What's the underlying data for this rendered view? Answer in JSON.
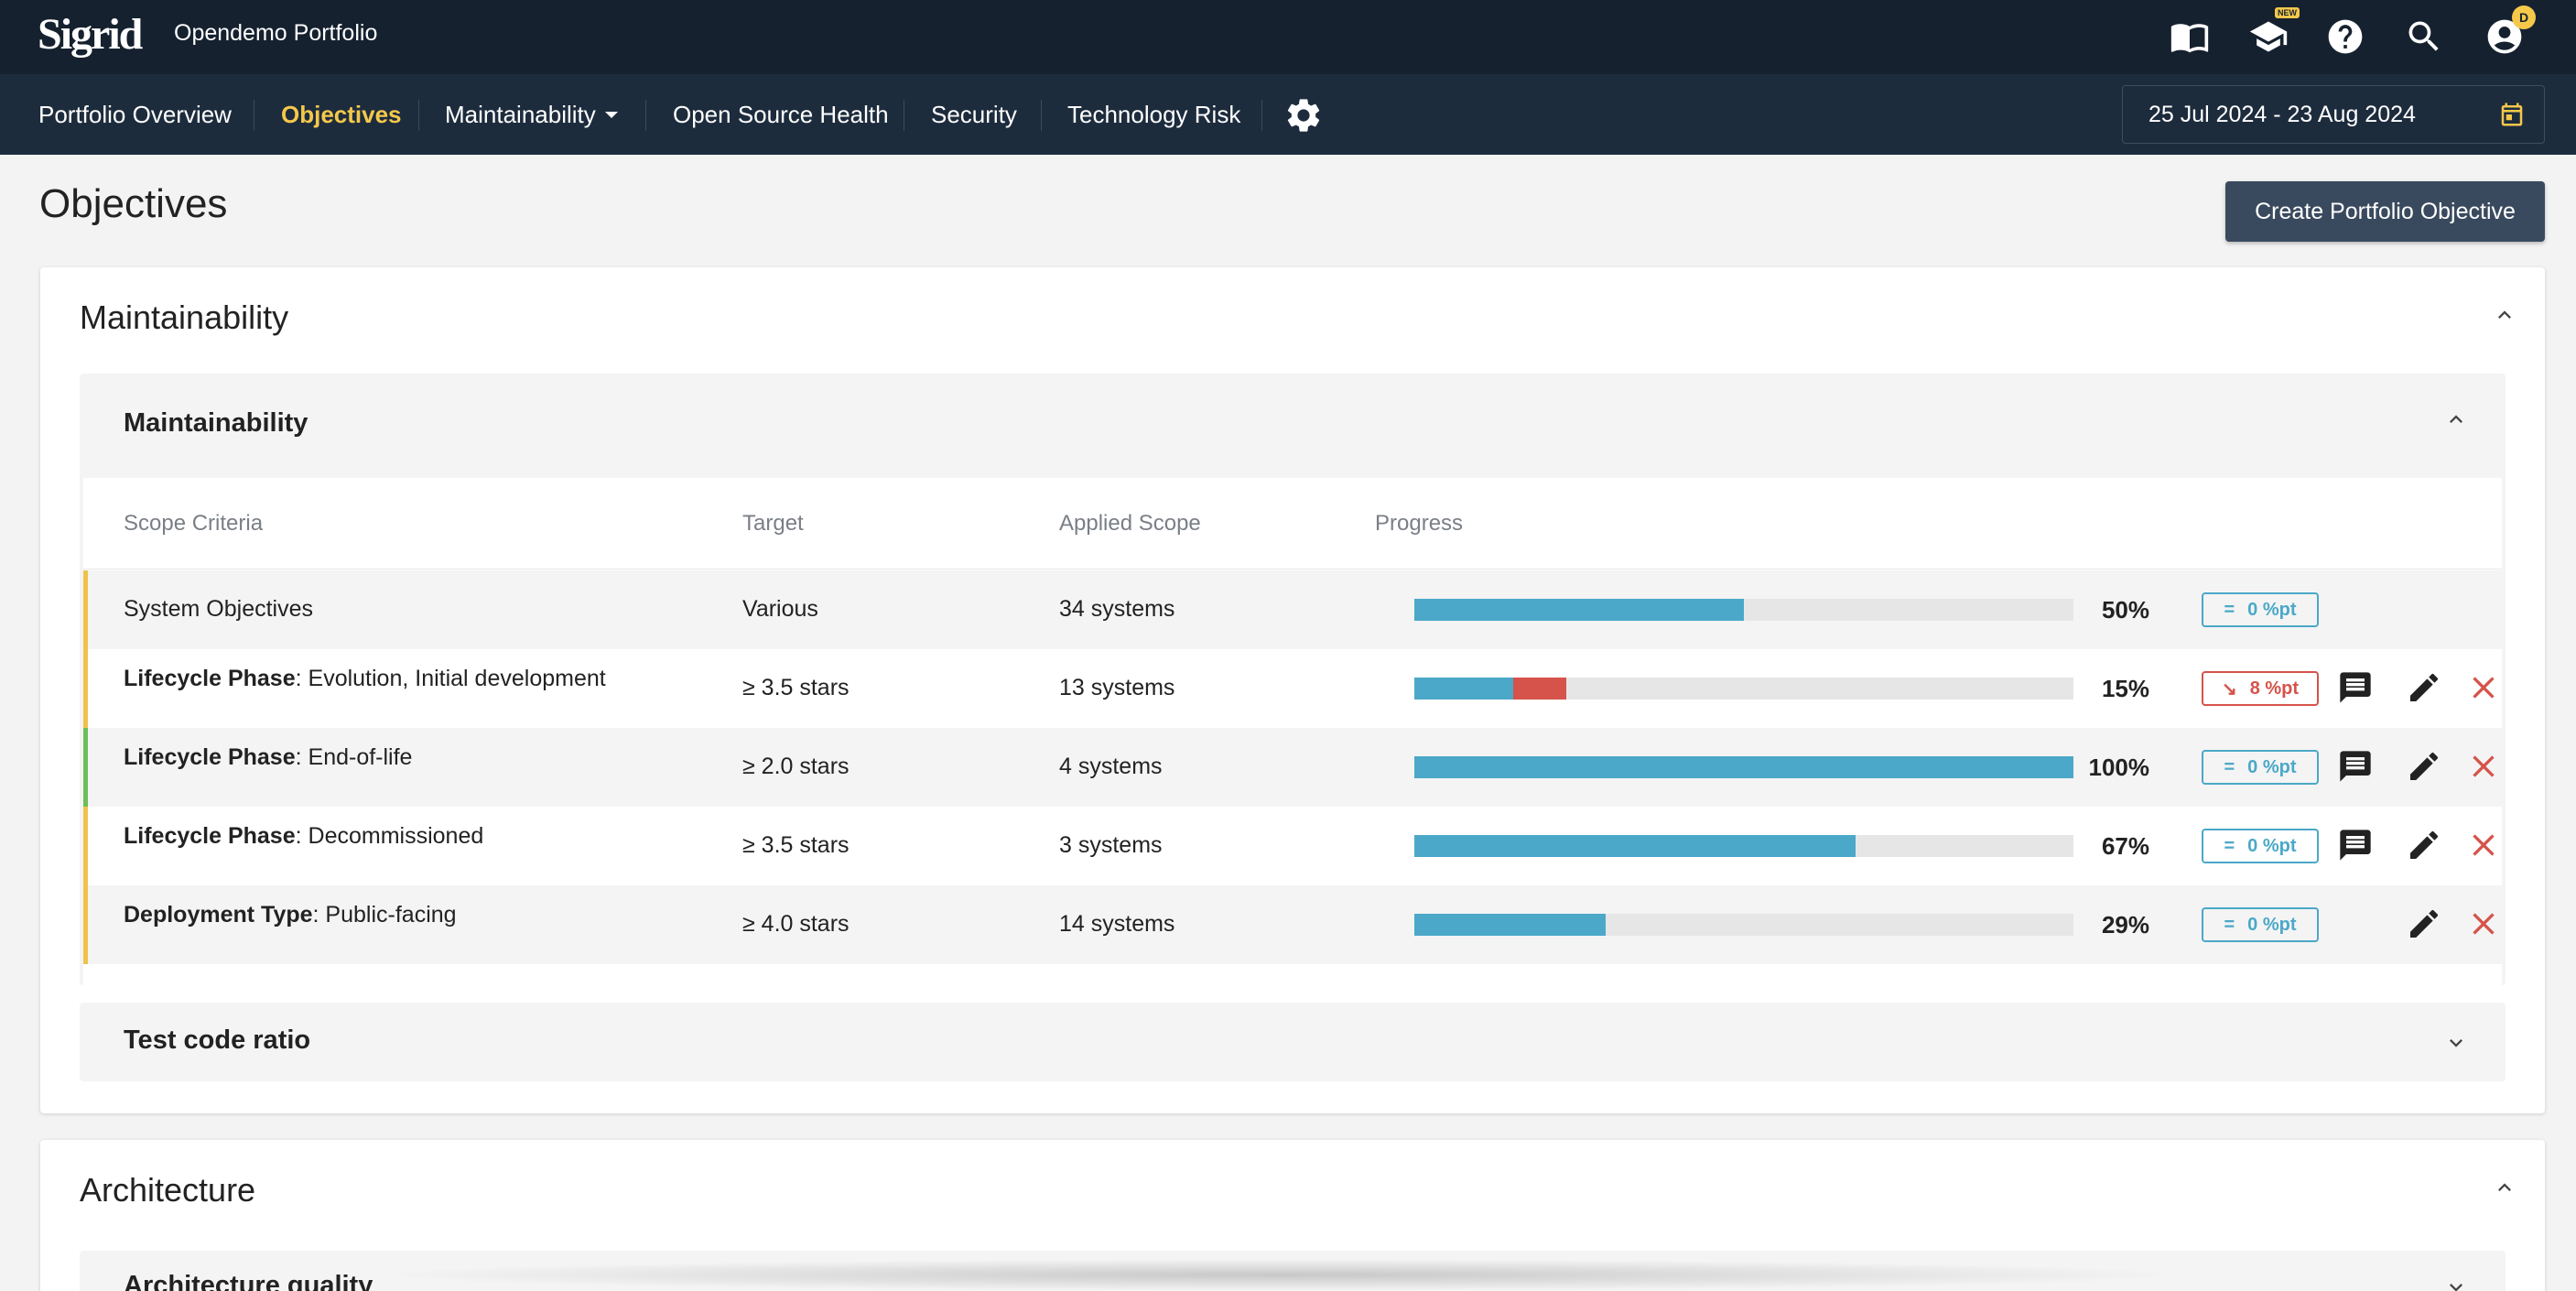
{
  "app": {
    "logo": "Sigrid",
    "portfolio": "Opendemo Portfolio"
  },
  "topbar": {
    "icons": [
      "book-icon",
      "graduation-cap-icon",
      "help-icon",
      "search-icon",
      "account-icon"
    ],
    "new_badge": "NEW",
    "user_initial": "D"
  },
  "nav": {
    "items": [
      {
        "label": "Portfolio Overview"
      },
      {
        "label": "Objectives"
      },
      {
        "label": "Maintainability"
      },
      {
        "label": "Open Source Health"
      },
      {
        "label": "Security"
      },
      {
        "label": "Technology Risk"
      }
    ],
    "active": "Objectives",
    "date_range": "25 Jul 2024 - 23 Aug 2024"
  },
  "page": {
    "title": "Objectives",
    "create_button": "Create Portfolio Objective"
  },
  "colors": {
    "accent": "#f5c84b",
    "topbar": "#15212f",
    "navbar": "#1d2c3d",
    "progress": "#4ba8c8",
    "negative": "#d5534a",
    "border_ok": "#6bbf59",
    "border_warn": "#f0c24c"
  },
  "sections": [
    {
      "title": "Maintainability",
      "groups": [
        {
          "title": "Maintainability",
          "columns": [
            "Scope Criteria",
            "Target",
            "Applied Scope",
            "Progress"
          ],
          "rows": [
            {
              "criteria_key": "",
              "criteria_value": "System Objectives",
              "target": "Various",
              "scope": "34 systems",
              "progress_fraction": 0.5,
              "progress": "50%",
              "delta_symbol": "=",
              "delta": "0 %pt"
            },
            {
              "criteria_key": "Lifecycle Phase",
              "criteria_value": ": Evolution, Initial development",
              "target": "≥ 3.5 stars",
              "scope": "13 systems",
              "progress_fraction": 0.15,
              "decline_fraction": 0.08,
              "progress": "15%",
              "delta_symbol": "↘",
              "delta": "8 %pt"
            },
            {
              "criteria_key": "Lifecycle Phase",
              "criteria_value": ": End-of-life",
              "target": "≥ 2.0 stars",
              "scope": "4 systems",
              "progress_fraction": 1.0,
              "progress": "100%",
              "delta_symbol": "=",
              "delta": "0 %pt"
            },
            {
              "criteria_key": "Lifecycle Phase",
              "criteria_value": ": Decommissioned",
              "target": "≥ 3.5 stars",
              "scope": "3 systems",
              "progress_fraction": 0.67,
              "progress": "67%",
              "delta_symbol": "=",
              "delta": "0 %pt"
            },
            {
              "criteria_key": "Deployment Type",
              "criteria_value": ": Public-facing",
              "target": "≥ 4.0 stars",
              "scope": "14 systems",
              "progress_fraction": 0.29,
              "progress": "29%",
              "delta_symbol": "=",
              "delta": "0 %pt"
            }
          ]
        },
        {
          "title": "Test code ratio"
        }
      ]
    },
    {
      "title": "Architecture",
      "groups": [
        {
          "title": "Architecture quality"
        }
      ]
    }
  ]
}
